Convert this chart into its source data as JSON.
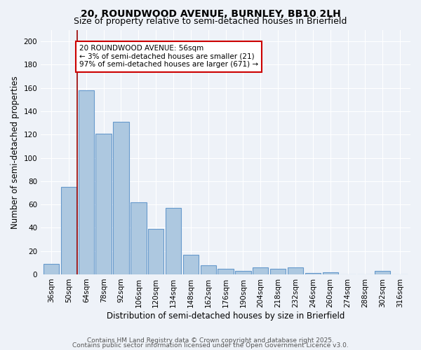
{
  "title": "20, ROUNDWOOD AVENUE, BURNLEY, BB10 2LH",
  "subtitle": "Size of property relative to semi-detached houses in Brierfield",
  "xlabel": "Distribution of semi-detached houses by size in Brierfield",
  "ylabel": "Number of semi-detached properties",
  "categories": [
    "36sqm",
    "50sqm",
    "64sqm",
    "78sqm",
    "92sqm",
    "106sqm",
    "120sqm",
    "134sqm",
    "148sqm",
    "162sqm",
    "176sqm",
    "190sqm",
    "204sqm",
    "218sqm",
    "232sqm",
    "246sqm",
    "260sqm",
    "274sqm",
    "288sqm",
    "302sqm",
    "316sqm"
  ],
  "values": [
    9,
    75,
    158,
    121,
    131,
    62,
    39,
    57,
    17,
    8,
    5,
    3,
    6,
    5,
    6,
    1,
    2,
    0,
    0,
    3,
    0
  ],
  "bar_color": "#adc8e0",
  "bar_edgecolor": "#6699cc",
  "redline_x": 1.5,
  "annotation_line1": "20 ROUNDWOOD AVENUE: 56sqm",
  "annotation_line2": "← 3% of semi-detached houses are smaller (21)",
  "annotation_line3": "97% of semi-detached houses are larger (671) →",
  "annotation_box_color": "#ffffff",
  "annotation_box_edgecolor": "#cc0000",
  "footer_line1": "Contains HM Land Registry data © Crown copyright and database right 2025.",
  "footer_line2": "Contains public sector information licensed under the Open Government Licence v3.0.",
  "ylim": [
    0,
    210
  ],
  "yticks": [
    0,
    20,
    40,
    60,
    80,
    100,
    120,
    140,
    160,
    180,
    200
  ],
  "background_color": "#eef2f8",
  "grid_color": "#ffffff",
  "title_fontsize": 10,
  "subtitle_fontsize": 9,
  "axis_label_fontsize": 8.5,
  "tick_fontsize": 7.5,
  "annotation_fontsize": 7.5,
  "footer_fontsize": 6.5
}
